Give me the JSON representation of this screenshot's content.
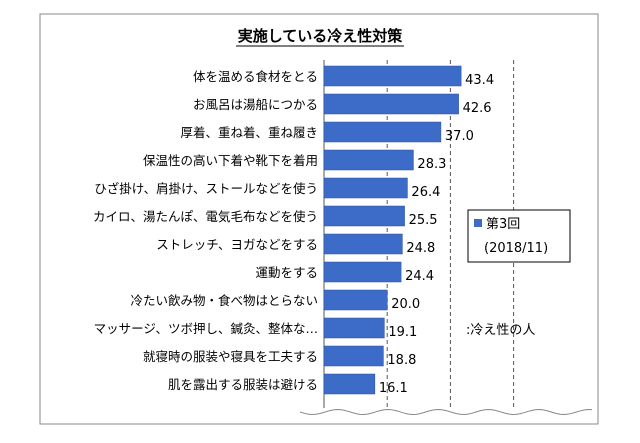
{
  "chart_data": {
    "type": "bar",
    "orientation": "horizontal",
    "title": "実施している冷え性対策",
    "categories": [
      "体を温める食材をとる",
      "お風呂は湯船につかる",
      "厚着、重ね着、重ね履き",
      "保温性の高い下着や靴下を着用",
      "ひざ掛け、肩掛け、ストールなどを使う",
      "カイロ、湯たんぽ、電気毛布などを使う",
      "ストレッチ、ヨガなどをする",
      "運動をする",
      "冷たい飲み物・食べ物はとらない",
      "マッサージ、ツボ押し、鍼灸、整体な…",
      "就寝時の服装や寝具を工夫する",
      "肌を露出する服装は避ける"
    ],
    "series": [
      {
        "name": "第3回 (2018/11)",
        "values": [
          43.4,
          42.6,
          37.0,
          28.3,
          26.4,
          25.5,
          24.8,
          24.4,
          20.0,
          19.1,
          18.8,
          16.1
        ],
        "labels": [
          "43.4",
          "42.6",
          "37.0",
          "28.3",
          "26.4",
          "25.5",
          "24.8",
          "24.4",
          "20.0",
          "19.1",
          "18.8",
          "16.1"
        ]
      }
    ],
    "legend": {
      "line1": "第3回",
      "line2": "(2018/11)",
      "placement": "right"
    },
    "annotation": ":冷え性の人",
    "xlim": [
      0,
      100
    ],
    "grid": "dashed-vertical",
    "axis_break": "bottom",
    "colors": {
      "bar": "#3d6bc8",
      "bar_edge": "#2a4f9a",
      "grid": "#555555",
      "frame": "#888888"
    }
  }
}
